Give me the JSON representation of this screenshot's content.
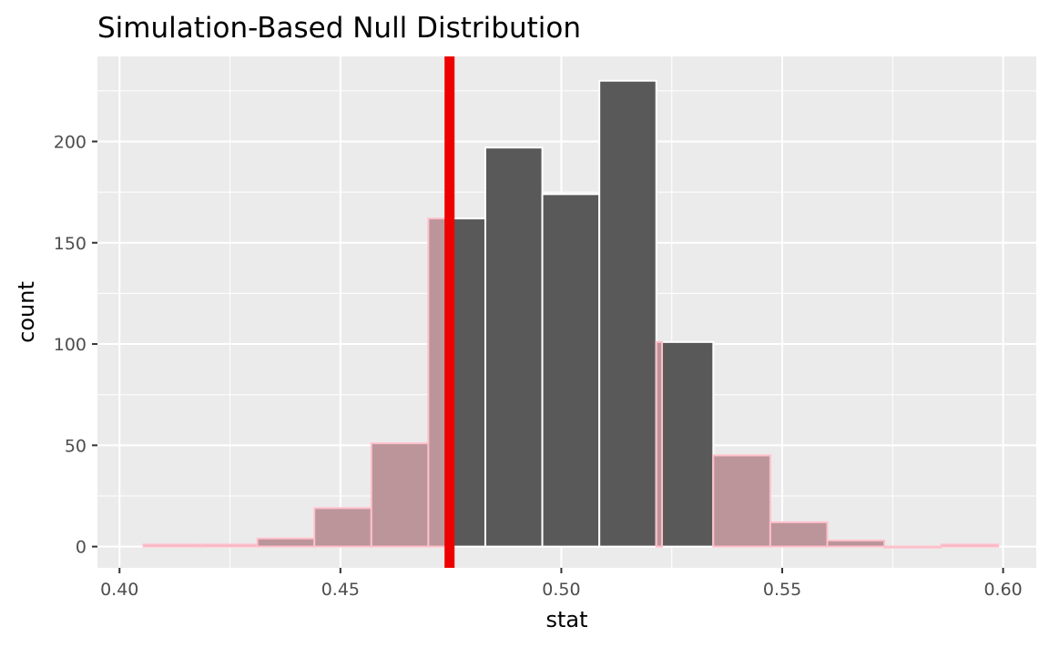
{
  "chart_data": {
    "type": "bar",
    "title": "Simulation-Based Null Distribution",
    "xlabel": "stat",
    "ylabel": "count",
    "xlim": [
      0.395,
      0.6075
    ],
    "ylim": [
      -10.5,
      242
    ],
    "x_ticks": [
      0.4,
      0.45,
      0.5,
      0.55,
      0.6
    ],
    "x_tick_labels": [
      "0.40",
      "0.45",
      "0.50",
      "0.55",
      "0.60"
    ],
    "y_ticks": [
      0,
      50,
      100,
      150,
      200
    ],
    "y_tick_labels": [
      "0",
      "50",
      "100",
      "150",
      "200"
    ],
    "grid": true,
    "bins": [
      {
        "x0": 0.4054,
        "x1": 0.4183,
        "count": 1,
        "shaded": true
      },
      {
        "x0": 0.4183,
        "x1": 0.4312,
        "count": 1,
        "shaded": true
      },
      {
        "x0": 0.4312,
        "x1": 0.4441,
        "count": 4,
        "shaded": true
      },
      {
        "x0": 0.4441,
        "x1": 0.457,
        "count": 19,
        "shaded": true
      },
      {
        "x0": 0.457,
        "x1": 0.4699,
        "count": 51,
        "shaded": true
      },
      {
        "x0": 0.4699,
        "x1": 0.4828,
        "count": 162,
        "shaded": "partial",
        "split": 0.4747
      },
      {
        "x0": 0.4828,
        "x1": 0.4957,
        "count": 197,
        "shaded": false
      },
      {
        "x0": 0.4957,
        "x1": 0.5086,
        "count": 174,
        "shaded": false
      },
      {
        "x0": 0.5086,
        "x1": 0.5215,
        "count": 230,
        "shaded": false
      },
      {
        "x0": 0.5215,
        "x1": 0.5344,
        "count": 101,
        "shaded": "partial",
        "split": 0.5228
      },
      {
        "x0": 0.5344,
        "x1": 0.5473,
        "count": 45,
        "shaded": true
      },
      {
        "x0": 0.5473,
        "x1": 0.5602,
        "count": 12,
        "shaded": true
      },
      {
        "x0": 0.5602,
        "x1": 0.5731,
        "count": 3,
        "shaded": true
      },
      {
        "x0": 0.5731,
        "x1": 0.586,
        "count": 0,
        "shaded": true
      },
      {
        "x0": 0.586,
        "x1": 0.5989,
        "count": 1,
        "shaded": true
      }
    ],
    "observed_stat": 0.4747,
    "colors": {
      "bar": "#595959",
      "shade": "#bc959b",
      "bar_outline": "#ffffff",
      "shade_outline": "#ffc0cb",
      "observed_line": "#ee0000",
      "panel_background": "#ebebeb",
      "grid": "#ffffff"
    }
  }
}
